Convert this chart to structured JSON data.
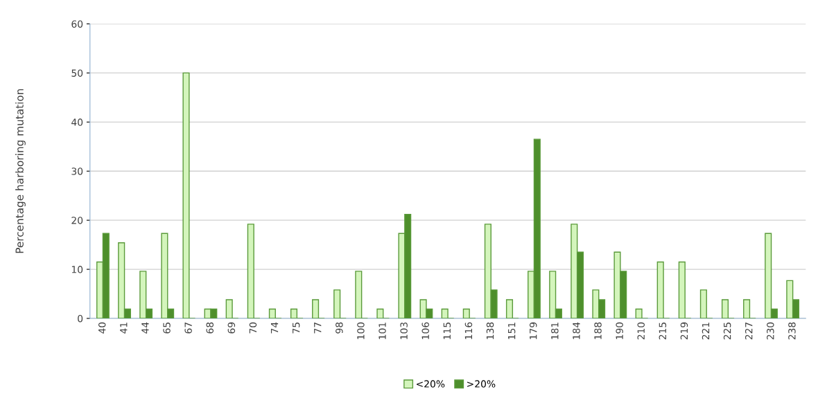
{
  "chart_data": {
    "type": "bar",
    "ylabel": "Percentage harboring mutation",
    "categories": [
      "40",
      "41",
      "44",
      "65",
      "67",
      "68",
      "69",
      "70",
      "74",
      "75",
      "77",
      "98",
      "100",
      "101",
      "103",
      "106",
      "115",
      "116",
      "138",
      "151",
      "179",
      "181",
      "184",
      "188",
      "190",
      "210",
      "215",
      "219",
      "221",
      "225",
      "227",
      "230",
      "238"
    ],
    "series": [
      {
        "name": "<20%",
        "color": "#d4f5bc",
        "values": [
          11.5,
          15.4,
          9.6,
          17.3,
          50,
          1.9,
          3.8,
          19.2,
          1.9,
          1.9,
          3.8,
          5.8,
          9.6,
          1.9,
          17.3,
          3.8,
          1.9,
          1.9,
          19.2,
          3.8,
          9.6,
          9.6,
          19.2,
          5.8,
          13.5,
          1.9,
          11.5,
          11.5,
          5.8,
          3.8,
          3.8,
          17.3,
          7.7
        ]
      },
      {
        "name": ">20%",
        "color": "#4e8f2c",
        "values": [
          17.3,
          1.9,
          1.9,
          1.9,
          0,
          1.9,
          0,
          0,
          0,
          0,
          0,
          0,
          0,
          0,
          21.2,
          1.9,
          0,
          0,
          5.8,
          0,
          36.5,
          1.9,
          13.5,
          3.8,
          9.6,
          0,
          0,
          0,
          0,
          0,
          0,
          1.9,
          3.8
        ]
      }
    ],
    "ylim": [
      0,
      60
    ],
    "yticks": [
      0,
      10,
      20,
      30,
      40,
      50,
      60
    ],
    "grid": "y",
    "legend": "bottom"
  }
}
